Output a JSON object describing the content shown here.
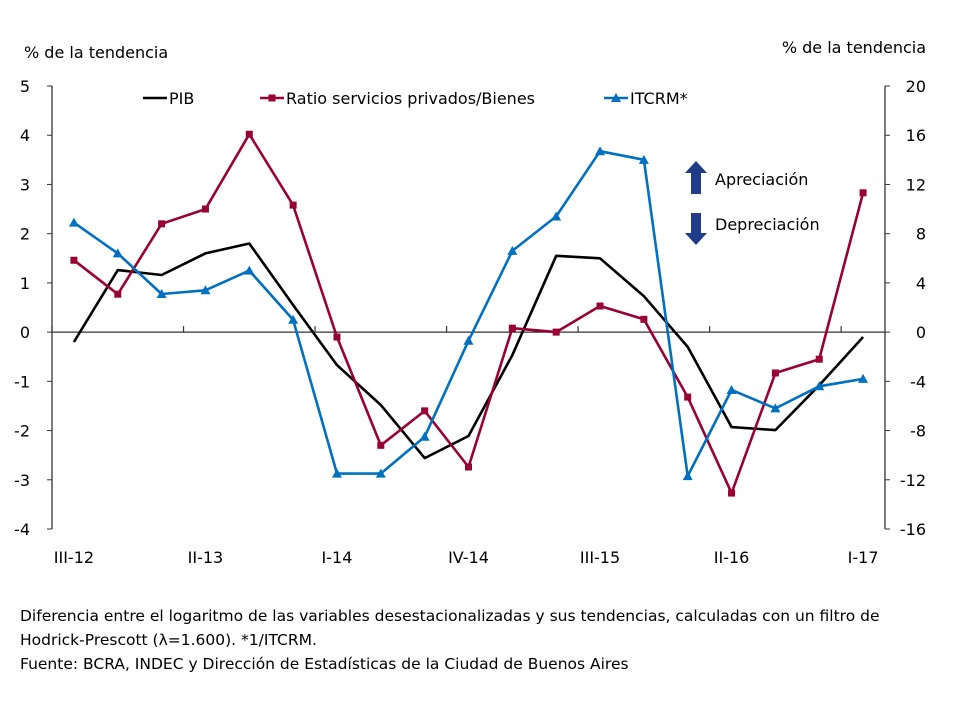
{
  "chart_data": {
    "type": "line",
    "y_left_label": "% de la tendencia",
    "y_right_label": "% de la tendencia",
    "ylim_left": [
      -4,
      5
    ],
    "ylim_right": [
      -16,
      20
    ],
    "yticks_left": [
      5,
      4,
      3,
      2,
      1,
      0,
      -1,
      -2,
      -3,
      -4
    ],
    "yticks_right": [
      20,
      16,
      12,
      8,
      4,
      0,
      -4,
      -8,
      -12,
      -16
    ],
    "categories": [
      "III-12",
      "IV-12",
      "I-13",
      "II-13",
      "III-13",
      "IV-13",
      "I-14",
      "II-14",
      "III-14",
      "IV-14",
      "I-15",
      "II-15",
      "III-15",
      "IV-15",
      "I-16",
      "II-16",
      "III-16",
      "IV-16",
      "I-17"
    ],
    "xtick_labels": [
      "III-12",
      "II-13",
      "I-14",
      "IV-14",
      "III-15",
      "II-16",
      "I-17"
    ],
    "grid": false,
    "legend_position": "top",
    "series": [
      {
        "name": "PIB",
        "axis": "left",
        "color": "#000000",
        "marker": "none",
        "values": [
          -0.2,
          1.26,
          1.16,
          1.6,
          1.8,
          0.55,
          -0.67,
          -1.48,
          -2.56,
          -2.11,
          -0.47,
          1.55,
          1.5,
          0.73,
          -0.3,
          -1.93,
          -1.99,
          -1.08,
          -0.1
        ]
      },
      {
        "name": "Ratio servicios privados/Bienes",
        "axis": "left",
        "color": "#990033",
        "marker": "square",
        "values": [
          1.46,
          0.77,
          2.2,
          2.5,
          4.02,
          2.58,
          -0.1,
          -2.3,
          -1.6,
          -2.74,
          0.08,
          0.0,
          0.53,
          0.26,
          -1.32,
          -3.27,
          -0.83,
          -0.55,
          2.83
        ]
      },
      {
        "name": "ITCRM*",
        "axis": "right",
        "color": "#0070C0",
        "marker": "triangle",
        "values": [
          8.9,
          6.4,
          3.1,
          3.4,
          5.0,
          1.0,
          -11.5,
          -11.5,
          -8.5,
          -0.7,
          6.6,
          9.4,
          14.7,
          14.0,
          -11.7,
          -4.7,
          -6.2,
          -4.4,
          -3.8
        ]
      }
    ],
    "annotations": {
      "up": "Apreciación",
      "down": "Depreciación",
      "arrow_color": "#1F3C88"
    }
  },
  "notes": [
    "Diferencia entre el logaritmo de las variables desestacionalizadas y sus tendencias, calculadas con un filtro de",
    "Hodrick-Prescott (λ=1.600). *1/ITCRM.",
    "Fuente: BCRA, INDEC y Dirección de Estadísticas de la Ciudad de Buenos Aires"
  ]
}
